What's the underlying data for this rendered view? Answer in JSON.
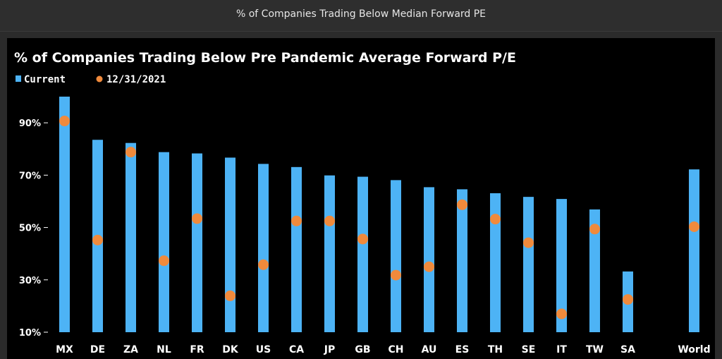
{
  "window": {
    "title": "% of Companies Trading Below Median Forward PE"
  },
  "colors": {
    "bar": "#4db3f5",
    "dot": "#f08a3c",
    "background": "#000000"
  },
  "chart_data": {
    "type": "bar",
    "title": "% of Companies Trading Below Pre Pandemic Average Forward P/E",
    "xlabel": "",
    "ylabel": "",
    "ylim": [
      10,
      100
    ],
    "yticks": [
      10,
      30,
      50,
      70,
      90
    ],
    "ytick_labels": [
      "10%",
      "30%",
      "50%",
      "70%",
      "90%"
    ],
    "legend_position": "top-left",
    "grid": false,
    "categories": [
      "MX",
      "DE",
      "ZA",
      "NL",
      "FR",
      "DK",
      "US",
      "CA",
      "JP",
      "GB",
      "CH",
      "AU",
      "ES",
      "TH",
      "SE",
      "IT",
      "TW",
      "SA",
      "",
      "World"
    ],
    "series": [
      {
        "name": "Current",
        "type": "bar",
        "values": [
          100,
          83.5,
          82.3,
          78.8,
          78.3,
          76.7,
          74.3,
          73.1,
          69.9,
          69.4,
          68.1,
          65.4,
          64.6,
          63.1,
          61.7,
          60.9,
          56.9,
          33.2,
          null,
          72.2
        ]
      },
      {
        "name": "12/31/2021",
        "type": "scatter",
        "values": [
          90.7,
          45.2,
          78.8,
          37.3,
          53.4,
          23.9,
          35.8,
          52.5,
          52.5,
          45.6,
          31.8,
          35.0,
          58.7,
          53.2,
          44.2,
          17.0,
          49.4,
          22.5,
          null,
          50.3
        ]
      }
    ]
  }
}
